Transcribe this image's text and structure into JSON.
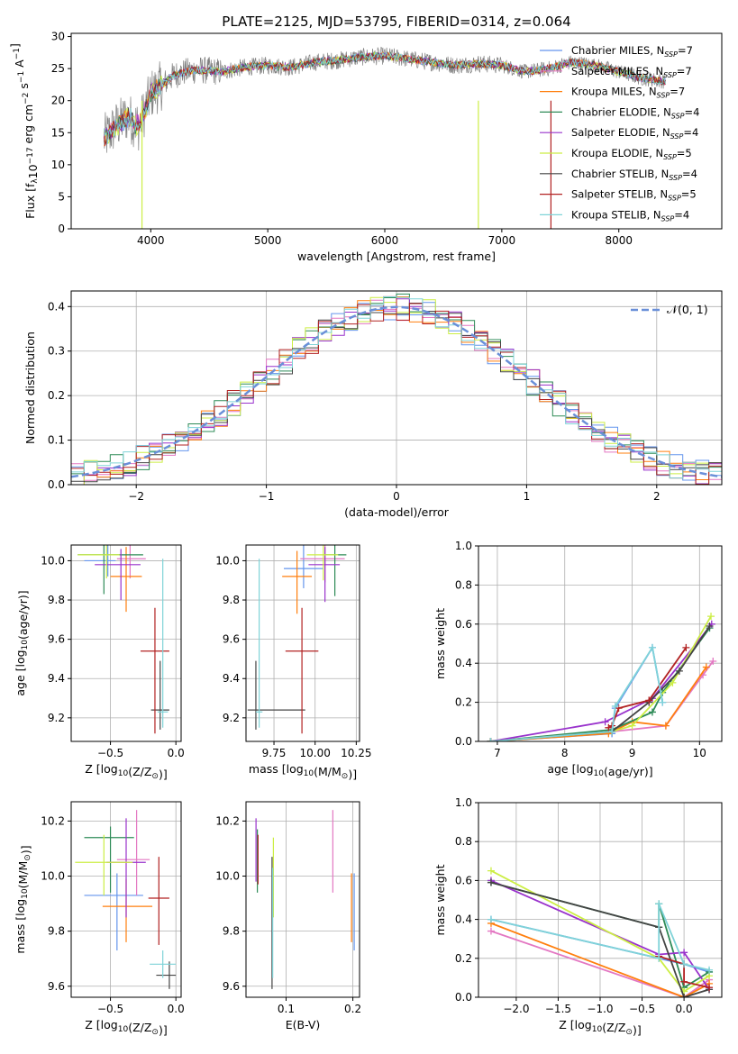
{
  "figure": {
    "title": "PLATE=2125, MJD=53795, FIBERID=0314, z=0.064"
  },
  "legend_spectrum": [
    {
      "label": "Chabrier MILES, N",
      "sub": "SSP",
      "suffix": "=7",
      "color": "#6495ed"
    },
    {
      "label": "Salpeter MILES, N",
      "sub": "SSP",
      "suffix": "=7",
      "color": "#e377c2"
    },
    {
      "label": "Kroupa MILES, N",
      "sub": "SSP",
      "suffix": "=7",
      "color": "#ff7f0e"
    },
    {
      "label": "Chabrier ELODIE, N",
      "sub": "SSP",
      "suffix": "=4",
      "color": "#2e8b57"
    },
    {
      "label": "Salpeter ELODIE, N",
      "sub": "SSP",
      "suffix": "=4",
      "color": "#9932cc"
    },
    {
      "label": "Kroupa ELODIE, N",
      "sub": "SSP",
      "suffix": "=5",
      "color": "#ccee44"
    },
    {
      "label": "Chabrier STELIB, N",
      "sub": "SSP",
      "suffix": "=4",
      "color": "#444444"
    },
    {
      "label": "Salpeter STELIB, N",
      "sub": "SSP",
      "suffix": "=5",
      "color": "#b22222"
    },
    {
      "label": "Kroupa STELIB, N",
      "sub": "SSP",
      "suffix": "=4",
      "color": "#7fd3d8"
    }
  ],
  "legend_hist": {
    "label": "𝒩(0, 1)",
    "color": "#6a8fd8"
  },
  "chart_data": [
    {
      "id": "spectrum",
      "type": "line",
      "title": "PLATE=2125, MJD=53795, FIBERID=0314, z=0.064",
      "xlabel": "wavelength [Angstrom, rest frame]",
      "ylabel": "Flux [f_λ 10^-17 erg cm^-2 s^-1 A^-1]",
      "xlim": [
        3320,
        8880
      ],
      "ylim": [
        0,
        30.5
      ],
      "xticks": [
        4000,
        5000,
        6000,
        7000,
        8000
      ],
      "yticks": [
        0,
        5,
        10,
        15,
        20,
        25,
        30
      ],
      "grid": false,
      "legend": "right",
      "data_x": [
        3600,
        3700,
        3800,
        3900,
        4000,
        4100,
        4200,
        4300,
        4400,
        4600,
        4800,
        5000,
        5200,
        5400,
        5600,
        5800,
        6000,
        6200,
        6400,
        6600,
        6800,
        7000,
        7200,
        7400,
        7600,
        7800,
        8000,
        8200,
        8400
      ],
      "data_y": [
        14,
        16,
        17.5,
        16,
        21,
        22.5,
        24,
        24.5,
        24.8,
        24.5,
        25.2,
        25.5,
        25.2,
        26,
        26.3,
        26.8,
        27,
        26.5,
        26,
        25.5,
        25.8,
        25.5,
        24.5,
        25,
        26,
        25.5,
        24.5,
        23.5,
        23
      ]
    },
    {
      "id": "residual-hist",
      "type": "histogram",
      "xlabel": "(data-model)/error",
      "ylabel": "Normed distribution",
      "xlim": [
        -2.5,
        2.5
      ],
      "ylim": [
        0,
        0.435
      ],
      "xticks": [
        -2,
        -1,
        0,
        1,
        2
      ],
      "yticks": [
        0.0,
        0.1,
        0.2,
        0.3,
        0.4
      ],
      "grid": true,
      "legend": "top-right",
      "bin_width": 0.1,
      "model": "normal(0,1)"
    },
    {
      "id": "age-vs-Z",
      "type": "errorbar",
      "xlabel": "Z [log10(Z/Z⊙)]",
      "ylabel": "age [log10(age/yr)]",
      "xlim": [
        -0.8,
        0.04
      ],
      "ylim": [
        9.08,
        10.08
      ],
      "xticks": [
        -0.5,
        0.0
      ],
      "yticks": [
        9.2,
        9.4,
        9.6,
        9.8,
        10.0
      ],
      "grid": true,
      "points": [
        {
          "x": -0.52,
          "xerr": [
            0.18,
            0.06
          ],
          "y": 10.0,
          "yerr": [
            0.08,
            0.08
          ]
        },
        {
          "x": -0.35,
          "xerr": [
            0.1,
            0.12
          ],
          "y": 10.01,
          "yerr": [
            0.1,
            0.08
          ]
        },
        {
          "x": -0.38,
          "xerr": [
            0.12,
            0.12
          ],
          "y": 9.92,
          "yerr": [
            0.18,
            0.15
          ]
        },
        {
          "x": -0.55,
          "xerr": [
            0.2,
            0.3
          ],
          "y": 10.03,
          "yerr": [
            0.2,
            0.06
          ]
        },
        {
          "x": -0.42,
          "xerr": [
            0.2,
            0.15
          ],
          "y": 9.98,
          "yerr": [
            0.18,
            0.08
          ]
        },
        {
          "x": -0.53,
          "xerr": [
            0.22,
            0.1
          ],
          "y": 10.03,
          "yerr": [
            0.12,
            0.06
          ]
        },
        {
          "x": -0.12,
          "xerr": [
            0.07,
            0.07
          ],
          "y": 9.24,
          "yerr": [
            0.1,
            0.25
          ]
        },
        {
          "x": -0.16,
          "xerr": [
            0.11,
            0.11
          ],
          "y": 9.54,
          "yerr": [
            0.42,
            0.22
          ]
        },
        {
          "x": -0.1,
          "xerr": [
            0.04,
            0.04
          ],
          "y": 9.23,
          "yerr": [
            0.08,
            0.78
          ]
        }
      ]
    },
    {
      "id": "age-vs-mass",
      "type": "errorbar",
      "xlabel": "mass [log10(M/M⊙)]",
      "ylabel": "",
      "xlim": [
        9.58,
        10.27
      ],
      "ylim": [
        9.08,
        10.08
      ],
      "xticks": [
        9.75,
        10.0,
        10.25
      ],
      "yticks": [
        9.2,
        9.4,
        9.6,
        9.8,
        10.0
      ],
      "grid": true,
      "points": [
        {
          "x": 9.93,
          "xerr": [
            0.12,
            0.12
          ],
          "y": 9.96,
          "yerr": [
            0.1,
            0.12
          ]
        },
        {
          "x": 10.06,
          "xerr": [
            0.15,
            0.12
          ],
          "y": 10.01,
          "yerr": [
            0.12,
            0.08
          ]
        },
        {
          "x": 9.89,
          "xerr": [
            0.09,
            0.09
          ],
          "y": 9.92,
          "yerr": [
            0.19,
            0.13
          ]
        },
        {
          "x": 10.12,
          "xerr": [
            0.07,
            0.07
          ],
          "y": 10.03,
          "yerr": [
            0.21,
            0.05
          ]
        },
        {
          "x": 10.06,
          "xerr": [
            0.1,
            0.09
          ],
          "y": 9.98,
          "yerr": [
            0.19,
            0.09
          ]
        },
        {
          "x": 10.05,
          "xerr": [
            0.1,
            0.09
          ],
          "y": 10.03,
          "yerr": [
            0.13,
            0.05
          ]
        },
        {
          "x": 9.64,
          "xerr": [
            0.05,
            0.3
          ],
          "y": 9.24,
          "yerr": [
            0.1,
            0.25
          ]
        },
        {
          "x": 9.92,
          "xerr": [
            0.1,
            0.1
          ],
          "y": 9.54,
          "yerr": [
            0.42,
            0.22
          ]
        },
        {
          "x": 9.66,
          "xerr": [
            0.02,
            0.02
          ],
          "y": 9.23,
          "yerr": [
            0.08,
            0.78
          ]
        }
      ]
    },
    {
      "id": "mass-weight-vs-age",
      "type": "line",
      "xlabel": "age [log10(age/yr)]",
      "ylabel": "mass weight",
      "xlim": [
        6.72,
        10.33
      ],
      "ylim": [
        0,
        1.0
      ],
      "xticks": [
        7,
        8,
        9,
        10
      ],
      "yticks": [
        0.0,
        0.2,
        0.4,
        0.6,
        0.8,
        1.0
      ],
      "grid": true,
      "series": [
        {
          "x": [
            6.9,
            8.7,
            8.75,
            9.3,
            9.45
          ],
          "y": [
            0.0,
            0.04,
            0.17,
            0.48,
            0.2
          ]
        },
        {
          "x": [
            6.9,
            8.7,
            9.5,
            10.05,
            10.2
          ],
          "y": [
            0.0,
            0.05,
            0.08,
            0.34,
            0.41
          ]
        },
        {
          "x": [
            6.9,
            8.65,
            9.0,
            9.5,
            10.1
          ],
          "y": [
            0.0,
            0.04,
            0.1,
            0.08,
            0.38
          ]
        },
        {
          "x": [
            6.9,
            8.7,
            9.3,
            9.45,
            10.15
          ],
          "y": [
            0.0,
            0.06,
            0.15,
            0.25,
            0.58
          ]
        },
        {
          "x": [
            6.9,
            8.6,
            9.3,
            10.18
          ],
          "y": [
            0.0,
            0.1,
            0.22,
            0.6
          ]
        },
        {
          "x": [
            6.9,
            8.7,
            9.0,
            9.6,
            10.17
          ],
          "y": [
            0.0,
            0.05,
            0.08,
            0.3,
            0.64
          ]
        },
        {
          "x": [
            6.9,
            8.7,
            9.25,
            9.7,
            10.15
          ],
          "y": [
            0.0,
            0.05,
            0.2,
            0.36,
            0.59
          ]
        },
        {
          "x": [
            8.65,
            8.7,
            8.8,
            9.25,
            9.8
          ],
          "y": [
            0.07,
            0.08,
            0.17,
            0.21,
            0.48
          ]
        },
        {
          "x": [
            6.9,
            8.7,
            8.75,
            9.3,
            9.45
          ],
          "y": [
            0.0,
            0.05,
            0.18,
            0.48,
            0.2
          ]
        }
      ]
    },
    {
      "id": "mass-vs-Z",
      "type": "errorbar",
      "xlabel": "Z [log10(Z/Z⊙)]",
      "ylabel": "mass [log10(M/M⊙)]",
      "xlim": [
        -0.8,
        0.04
      ],
      "ylim": [
        9.56,
        10.27
      ],
      "xticks": [
        -0.5,
        0.0
      ],
      "yticks": [
        9.6,
        9.8,
        10.0,
        10.2
      ],
      "grid": true,
      "points": [
        {
          "x": -0.45,
          "xerr": [
            0.25,
            0.2
          ],
          "y": 9.93,
          "yerr": [
            0.2,
            0.08
          ]
        },
        {
          "x": -0.3,
          "xerr": [
            0.15,
            0.1
          ],
          "y": 10.06,
          "yerr": [
            0.13,
            0.18
          ]
        },
        {
          "x": -0.38,
          "xerr": [
            0.18,
            0.2
          ],
          "y": 9.89,
          "yerr": [
            0.13,
            0.1
          ]
        },
        {
          "x": -0.5,
          "xerr": [
            0.2,
            0.18
          ],
          "y": 10.14,
          "yerr": [
            0.2,
            0.04
          ]
        },
        {
          "x": -0.38,
          "xerr": [
            0.15,
            0.15
          ],
          "y": 10.05,
          "yerr": [
            0.2,
            0.16
          ]
        },
        {
          "x": -0.55,
          "xerr": [
            0.22,
            0.22
          ],
          "y": 10.05,
          "yerr": [
            0.12,
            0.1
          ]
        },
        {
          "x": -0.05,
          "xerr": [
            0.1,
            0.05
          ],
          "y": 9.64,
          "yerr": [
            0.05,
            0.05
          ]
        },
        {
          "x": -0.13,
          "xerr": [
            0.08,
            0.08
          ],
          "y": 9.92,
          "yerr": [
            0.17,
            0.15
          ]
        },
        {
          "x": -0.1,
          "xerr": [
            0.1,
            0.1
          ],
          "y": 9.68,
          "yerr": [
            0.05,
            0.05
          ]
        }
      ]
    },
    {
      "id": "mass-vs-EBV",
      "type": "errorbar",
      "xlabel": "E(B-V)",
      "ylabel": "",
      "xlim": [
        0.04,
        0.21
      ],
      "ylim": [
        9.56,
        10.27
      ],
      "xticks": [
        0.1,
        0.2
      ],
      "yticks": [
        9.6,
        9.8,
        10.0,
        10.2
      ],
      "grid": true,
      "points": [
        {
          "x": 0.202,
          "y": 9.93,
          "yerr": [
            0.2,
            0.08
          ]
        },
        {
          "x": 0.17,
          "y": 10.06,
          "yerr": [
            0.12,
            0.18
          ]
        },
        {
          "x": 0.198,
          "y": 9.89,
          "yerr": [
            0.13,
            0.12
          ]
        },
        {
          "x": 0.057,
          "y": 10.07,
          "yerr": [
            0.13,
            0.1
          ]
        },
        {
          "x": 0.055,
          "y": 10.07,
          "yerr": [
            0.09,
            0.14
          ]
        },
        {
          "x": 0.081,
          "y": 10.05,
          "yerr": [
            0.2,
            0.09
          ]
        },
        {
          "x": 0.079,
          "y": 9.87,
          "yerr": [
            0.28,
            0.2
          ]
        },
        {
          "x": 0.058,
          "y": 10.05,
          "yerr": [
            0.08,
            0.1
          ]
        },
        {
          "x": 0.08,
          "y": 9.83,
          "yerr": [
            0.2,
            0.2
          ]
        }
      ]
    },
    {
      "id": "mass-weight-vs-Z",
      "type": "line",
      "xlabel": "Z [log10(Z/Z⊙)]",
      "ylabel": "mass weight",
      "xlim": [
        -2.45,
        0.45
      ],
      "ylim": [
        0,
        1.0
      ],
      "xticks": [
        -2.0,
        -1.5,
        -1.0,
        -0.5,
        0.0
      ],
      "yticks": [
        0.0,
        0.2,
        0.4,
        0.6,
        0.8,
        1.0
      ],
      "grid": true,
      "series": [
        {
          "x": [
            -2.3,
            -0.3,
            0.0,
            0.3
          ],
          "y": [
            0.4,
            0.2,
            0.17,
            0.13
          ]
        },
        {
          "x": [
            -2.3,
            0.0,
            0.3
          ],
          "y": [
            0.34,
            0.0,
            0.09
          ]
        },
        {
          "x": [
            -2.3,
            0.0,
            0.3
          ],
          "y": [
            0.38,
            0.0,
            0.07
          ]
        },
        {
          "x": [
            -2.3,
            -0.3,
            -0.3,
            0.0,
            0.3
          ],
          "y": [
            0.59,
            0.36,
            0.48,
            0.05,
            0.13
          ]
        },
        {
          "x": [
            -2.3,
            -0.3,
            0.0,
            0.3
          ],
          "y": [
            0.6,
            0.22,
            0.23,
            0.04
          ]
        },
        {
          "x": [
            -2.3,
            -0.3,
            0.0,
            0.3
          ],
          "y": [
            0.65,
            0.2,
            0.03,
            0.11
          ]
        },
        {
          "x": [
            -2.3,
            -0.3,
            0.0,
            0.3
          ],
          "y": [
            0.59,
            0.36,
            0.0,
            0.04
          ]
        },
        {
          "x": [
            -0.3,
            0.0,
            0.0,
            0.3
          ],
          "y": [
            0.21,
            0.17,
            0.08,
            0.05
          ]
        },
        {
          "x": [
            -2.3,
            -0.3,
            -0.3,
            0.0,
            0.3
          ],
          "y": [
            0.4,
            0.2,
            0.48,
            0.17,
            0.14
          ]
        }
      ]
    }
  ]
}
